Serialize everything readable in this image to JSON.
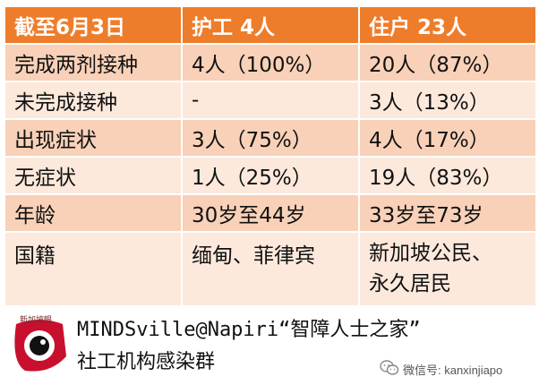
{
  "table": {
    "headers": [
      "截至6月3日",
      "护工 4人",
      "住户 23人"
    ],
    "rows": [
      {
        "label": "完成两剂接种",
        "caregivers": "4人（100%）",
        "residents": "20人（87%）"
      },
      {
        "label": "未完成接种",
        "caregivers": "-",
        "residents": "3人（13%）"
      },
      {
        "label": "出现症状",
        "caregivers": "3人（75%）",
        "residents": "4人（17%）"
      },
      {
        "label": "无症状",
        "caregivers": "1人（25%）",
        "residents": "19人（83%）"
      },
      {
        "label": "年龄",
        "caregivers": "30岁至44岁",
        "residents": "33岁至73岁"
      },
      {
        "label": "国籍",
        "caregivers": "缅甸、菲律宾",
        "residents_lines": [
          "新加坡公民、",
          "永久居民"
        ]
      }
    ]
  },
  "footer": {
    "logo_text": "新加坡眼",
    "line1": "MINDSville@Napiri“智障人士之家”",
    "line2": "社工机构感染群",
    "wechat_label": "微信号: kanxinjiapo"
  },
  "colors": {
    "header_bg": "#ee7d2b",
    "row_dark": "#f8d1b8",
    "row_light": "#fce9dc"
  }
}
